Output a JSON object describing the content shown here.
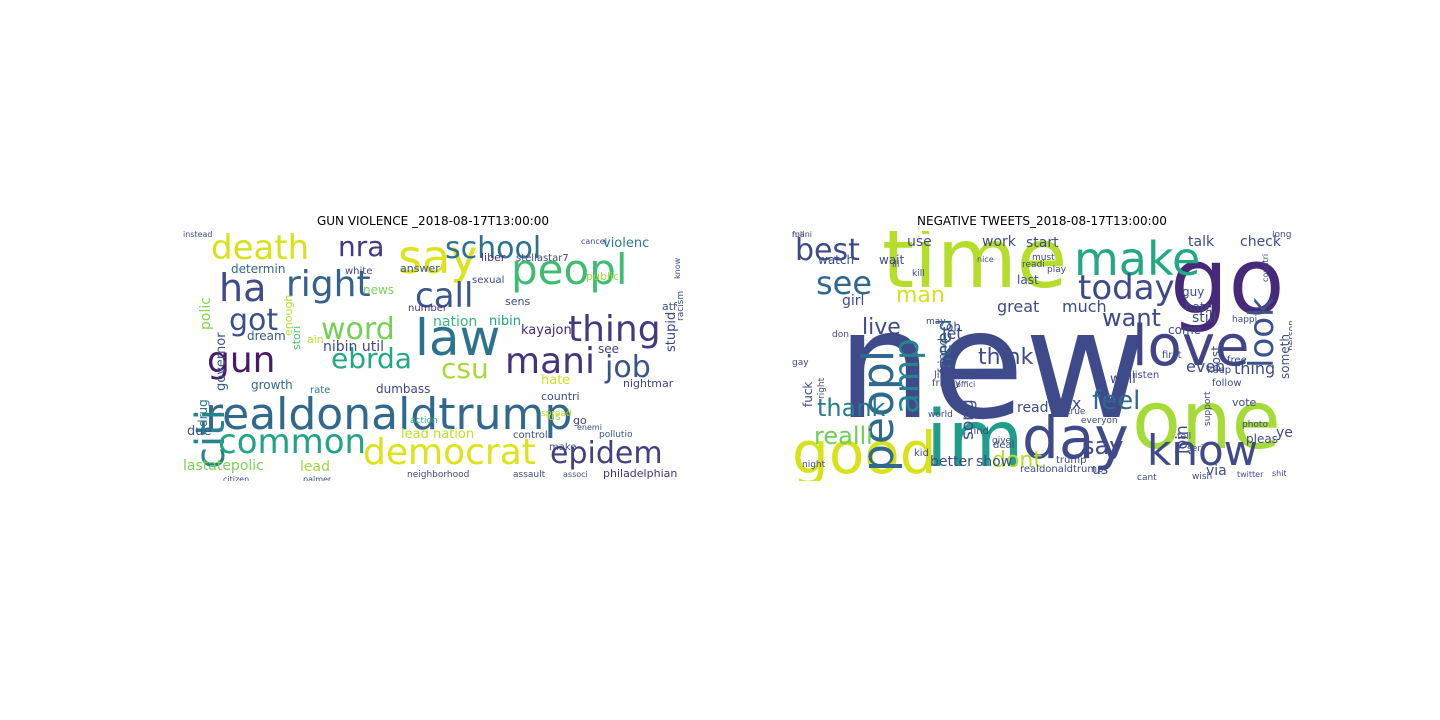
{
  "figure": {
    "panels": [
      {
        "title": "GUN VIOLENCE _2018-08-17T13:00:00",
        "words": [
          {
            "text": "realdonaldtrump",
            "color": "#31688e"
          },
          {
            "text": "say",
            "color": "#dde318"
          },
          {
            "text": "peopl",
            "color": "#3fbc73"
          },
          {
            "text": "law",
            "color": "#2c728e"
          },
          {
            "text": "death",
            "color": "#d8e219"
          },
          {
            "text": "right",
            "color": "#34618d"
          },
          {
            "text": "call",
            "color": "#38588c"
          },
          {
            "text": "citi",
            "color": "#26828e"
          },
          {
            "text": "ha",
            "color": "#3e4a89"
          },
          {
            "text": "common",
            "color": "#20a386"
          },
          {
            "text": "democrat",
            "color": "#dde318"
          },
          {
            "text": "thing",
            "color": "#443a83"
          },
          {
            "text": "school",
            "color": "#2c728e"
          },
          {
            "text": "nra",
            "color": "#453781"
          },
          {
            "text": "gun",
            "color": "#481a6c"
          },
          {
            "text": "epidem",
            "color": "#433e85"
          },
          {
            "text": "mani",
            "color": "#46337e"
          },
          {
            "text": "word",
            "color": "#75d054"
          },
          {
            "text": "got",
            "color": "#3b518b"
          },
          {
            "text": "csu",
            "color": "#a5db36"
          },
          {
            "text": "ebrda",
            "color": "#22a884"
          },
          {
            "text": "job",
            "color": "#3b528b"
          },
          {
            "text": "lastatepolic",
            "color": "#7ad151"
          },
          {
            "text": "lead",
            "color": "#9bd93c"
          },
          {
            "text": "lead nation",
            "color": "#c2df23"
          },
          {
            "text": "nation",
            "color": "#35b779"
          },
          {
            "text": "nibin",
            "color": "#1fa187"
          },
          {
            "text": "nibin util",
            "color": "#3e4989"
          },
          {
            "text": "violenc",
            "color": "#2a788e"
          },
          {
            "text": "stupid",
            "color": "#414487"
          },
          {
            "text": "kayajon",
            "color": "#482878"
          },
          {
            "text": "growth",
            "color": "#31688e"
          },
          {
            "text": "dumbass",
            "color": "#404688"
          },
          {
            "text": "hate",
            "color": "#d0e11c"
          },
          {
            "text": "countri",
            "color": "#3e4c8a"
          },
          {
            "text": "due",
            "color": "#3b528b"
          },
          {
            "text": "polic",
            "color": "#86d549"
          },
          {
            "text": "news",
            "color": "#7ad151"
          },
          {
            "text": "determin",
            "color": "#31688e"
          },
          {
            "text": "dream",
            "color": "#38598c"
          },
          {
            "text": "control",
            "color": "#3e4a89"
          },
          {
            "text": "see",
            "color": "#414487"
          },
          {
            "text": "philadelphian",
            "color": "#472d7b"
          },
          {
            "text": "liber",
            "color": "#46307e"
          },
          {
            "text": "answer",
            "color": "#3b528b"
          },
          {
            "text": "sens",
            "color": "#3e4a89"
          },
          {
            "text": "public",
            "color": "#9fda3a"
          },
          {
            "text": "enough",
            "color": "#b5de2b"
          },
          {
            "text": "stori",
            "color": "#48c16e"
          },
          {
            "text": "governor",
            "color": "#38598c"
          },
          {
            "text": "drug",
            "color": "#2e6e8e"
          },
          {
            "text": "white",
            "color": "#3e4a89"
          },
          {
            "text": "number",
            "color": "#46327e"
          },
          {
            "text": "nightmar",
            "color": "#414487"
          },
          {
            "text": "atf",
            "color": "#3b528b"
          },
          {
            "text": "sexual",
            "color": "#3e4a89"
          },
          {
            "text": "stellastar7",
            "color": "#3e4a89"
          },
          {
            "text": "rate",
            "color": "#2a788e"
          },
          {
            "text": "ain",
            "color": "#c0df25"
          },
          {
            "text": "make",
            "color": "#3e4a89"
          },
          {
            "text": "us",
            "color": "#9bd93c"
          },
          {
            "text": "go",
            "color": "#414487"
          },
          {
            "text": "pollutio",
            "color": "#39558c"
          },
          {
            "text": "citizen",
            "color": "#3e4a89"
          },
          {
            "text": "neighborhood",
            "color": "#3e4a89"
          },
          {
            "text": "assault",
            "color": "#3e4a89"
          },
          {
            "text": "associ",
            "color": "#3e4a89"
          },
          {
            "text": "racism",
            "color": "#3e4a89"
          },
          {
            "text": "know",
            "color": "#3e4a89"
          },
          {
            "text": "instead",
            "color": "#3e4a89"
          },
          {
            "text": "spread",
            "color": "#c2df23"
          },
          {
            "text": "enemi",
            "color": "#3e4a89"
          },
          {
            "text": "action",
            "color": "#35b779"
          },
          {
            "text": "cancel",
            "color": "#3e4a89"
          },
          {
            "text": "palmer",
            "color": "#3e4a89"
          }
        ]
      },
      {
        "title": "NEGATIVE TWEETS_2018-08-17T13:00:00",
        "words": [
          {
            "text": "new",
            "color": "#3e4a89"
          },
          {
            "text": "one",
            "color": "#a5db36"
          },
          {
            "text": "time",
            "color": "#b5de2b"
          },
          {
            "text": "go",
            "color": "#482878"
          },
          {
            "text": "im",
            "color": "#1f9e89"
          },
          {
            "text": "good",
            "color": "#d8e219"
          },
          {
            "text": "peopl",
            "color": "#31688e"
          },
          {
            "text": "day",
            "color": "#3e4a89"
          },
          {
            "text": "love",
            "color": "#414487"
          },
          {
            "text": "know",
            "color": "#3e4a89"
          },
          {
            "text": "make",
            "color": "#22a884"
          },
          {
            "text": "amp",
            "color": "#26828e"
          },
          {
            "text": "today",
            "color": "#3e4a89"
          },
          {
            "text": "look",
            "color": "#3b528b"
          },
          {
            "text": "best",
            "color": "#3e4a89"
          },
          {
            "text": "see",
            "color": "#31688e"
          },
          {
            "text": "thank",
            "color": "#2a788e"
          },
          {
            "text": "realli",
            "color": "#6ece58"
          },
          {
            "text": "feel",
            "color": "#31688e"
          },
          {
            "text": "say",
            "color": "#3e4a89"
          },
          {
            "text": "want",
            "color": "#3e4a89"
          },
          {
            "text": "dont",
            "color": "#b5de2b"
          },
          {
            "text": "man",
            "color": "#d8e219"
          },
          {
            "text": "live",
            "color": "#3e4a89"
          },
          {
            "text": "think",
            "color": "#3e4a89"
          },
          {
            "text": "need",
            "color": "#31688e"
          },
          {
            "text": "song",
            "color": "#3e4a89"
          },
          {
            "text": "even",
            "color": "#3e4a89"
          },
          {
            "text": "thing",
            "color": "#3e4a89"
          },
          {
            "text": "let",
            "color": "#3e4a89"
          },
          {
            "text": "much",
            "color": "#3e4a89"
          },
          {
            "text": "great",
            "color": "#3e4a89"
          },
          {
            "text": "girl",
            "color": "#3e4a89"
          },
          {
            "text": "use",
            "color": "#3e4a89"
          },
          {
            "text": "work",
            "color": "#3e4a89"
          },
          {
            "text": "start",
            "color": "#3e4a89"
          },
          {
            "text": "talk",
            "color": "#3e4a89"
          },
          {
            "text": "check",
            "color": "#3e4a89"
          },
          {
            "text": "still",
            "color": "#3e4a89"
          },
          {
            "text": "come",
            "color": "#3e4a89"
          },
          {
            "text": "well",
            "color": "#3e4a89"
          },
          {
            "text": "us",
            "color": "#3e4a89"
          },
          {
            "text": "via",
            "color": "#3e4a89"
          },
          {
            "text": "year",
            "color": "#3e4a89"
          },
          {
            "text": "join",
            "color": "#3e4a89"
          },
          {
            "text": "sex",
            "color": "#3e4a89"
          },
          {
            "text": "read",
            "color": "#3e4a89"
          },
          {
            "text": "show",
            "color": "#3e4a89"
          },
          {
            "text": "better",
            "color": "#3e4a89"
          },
          {
            "text": "fuck",
            "color": "#3e4a89"
          },
          {
            "text": "friend",
            "color": "#3e4a89"
          },
          {
            "text": "post",
            "color": "#3e4a89"
          },
          {
            "text": "oh",
            "color": "#3e4a89"
          },
          {
            "text": "wait",
            "color": "#3e4a89"
          },
          {
            "text": "watch",
            "color": "#3e4a89"
          },
          {
            "text": "last",
            "color": "#3e4a89"
          },
          {
            "text": "guy",
            "color": "#3e4a89"
          },
          {
            "text": "hate",
            "color": "#3e4a89"
          },
          {
            "text": "someth",
            "color": "#3e4a89"
          },
          {
            "text": "realdonaldtrump",
            "color": "#3e4a89"
          },
          {
            "text": "vote",
            "color": "#3e4a89"
          },
          {
            "text": "pleas",
            "color": "#3e4a89"
          },
          {
            "text": "follow",
            "color": "#3e4a89"
          },
          {
            "text": "keep",
            "color": "#3e4a89"
          },
          {
            "text": "listen",
            "color": "#3e4a89"
          },
          {
            "text": "deal",
            "color": "#3e4a89"
          },
          {
            "text": "free",
            "color": "#3e4a89"
          },
          {
            "text": "trump",
            "color": "#3e4a89"
          },
          {
            "text": "world",
            "color": "#3e4a89"
          },
          {
            "text": "kid",
            "color": "#3e4a89"
          },
          {
            "text": "find",
            "color": "#3e4a89"
          },
          {
            "text": "may",
            "color": "#3e4a89"
          },
          {
            "text": "night",
            "color": "#3e4a89"
          },
          {
            "text": "gay",
            "color": "#3e4a89"
          },
          {
            "text": "person",
            "color": "#3e4a89"
          },
          {
            "text": "countri",
            "color": "#3e4a89"
          },
          {
            "text": "happi",
            "color": "#3e4a89"
          },
          {
            "text": "long",
            "color": "#3e4a89"
          },
          {
            "text": "life",
            "color": "#3e4a89"
          },
          {
            "text": "kill",
            "color": "#3e4a89"
          },
          {
            "text": "ill",
            "color": "#3e4a89"
          },
          {
            "text": "first",
            "color": "#3e4a89"
          },
          {
            "text": "must",
            "color": "#3e4a89"
          },
          {
            "text": "true",
            "color": "#3e4a89"
          },
          {
            "text": "tell",
            "color": "#3e4a89"
          },
          {
            "text": "seri",
            "color": "#3e4a89"
          },
          {
            "text": "give",
            "color": "#3e4a89"
          },
          {
            "text": "wish",
            "color": "#3e4a89"
          },
          {
            "text": "twitter",
            "color": "#3e4a89"
          },
          {
            "text": "support",
            "color": "#3e4a89"
          },
          {
            "text": "right",
            "color": "#3e4a89"
          },
          {
            "text": "friday",
            "color": "#3e4a89"
          },
          {
            "text": "everyon",
            "color": "#3e4a89"
          },
          {
            "text": "readi",
            "color": "#3e4a89"
          },
          {
            "text": "play",
            "color": "#3e4a89"
          },
          {
            "text": "cant",
            "color": "#3e4a89"
          },
          {
            "text": "shit",
            "color": "#3e4a89"
          },
          {
            "text": "offici",
            "color": "#3e4a89"
          },
          {
            "text": "photo",
            "color": "#3e4a89"
          },
          {
            "text": "don",
            "color": "#3e4a89"
          },
          {
            "text": "nice",
            "color": "#3e4a89"
          },
          {
            "text": "mani",
            "color": "#3e4a89"
          },
          {
            "text": "full",
            "color": "#3e4a89"
          }
        ]
      }
    ]
  }
}
